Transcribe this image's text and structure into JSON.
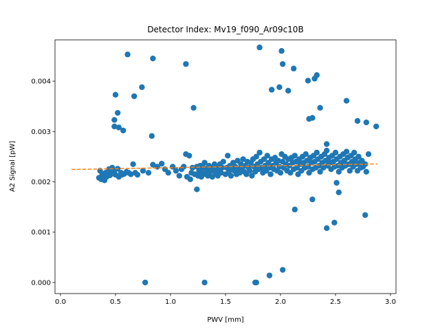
{
  "chart_data": {
    "type": "scatter",
    "title": "Detector Index: Mv19_f090_Ar09c10B",
    "xlabel": "PWV [mm]",
    "ylabel": "A2 Signal [pW]",
    "xlim": [
      -0.05,
      3.05
    ],
    "ylim": [
      -0.00022,
      0.00482
    ],
    "xticks": [
      0.0,
      0.5,
      1.0,
      1.5,
      2.0,
      2.5,
      3.0
    ],
    "xtick_labels": [
      "0.0",
      "0.5",
      "1.0",
      "1.5",
      "2.0",
      "2.5",
      "3.0"
    ],
    "yticks": [
      0.0,
      0.001,
      0.002,
      0.003,
      0.004
    ],
    "ytick_labels": [
      "0.000",
      "0.001",
      "0.002",
      "0.003",
      "0.004"
    ],
    "grid": false,
    "colors": {
      "points": "#1f77b4",
      "fit": "#ff7f0e"
    },
    "series": [
      {
        "name": "data",
        "kind": "points",
        "points": [
          [
            0.35,
            0.00208
          ],
          [
            0.36,
            0.00222
          ],
          [
            0.37,
            0.00205
          ],
          [
            0.38,
            0.00215
          ],
          [
            0.39,
            0.00212
          ],
          [
            0.4,
            0.00203
          ],
          [
            0.41,
            0.00218
          ],
          [
            0.42,
            0.0021
          ],
          [
            0.43,
            0.00215
          ],
          [
            0.44,
            0.00225
          ],
          [
            0.45,
            0.00213
          ],
          [
            0.46,
            0.00218
          ],
          [
            0.47,
            0.00228
          ],
          [
            0.48,
            0.00218
          ],
          [
            0.49,
            0.00222
          ],
          [
            0.5,
            0.00214
          ],
          [
            0.52,
            0.00226
          ],
          [
            0.53,
            0.0021
          ],
          [
            0.55,
            0.00218
          ],
          [
            0.56,
            0.00214
          ],
          [
            0.58,
            0.00216
          ],
          [
            0.6,
            0.0022
          ],
          [
            0.62,
            0.00218
          ],
          [
            0.64,
            0.00215
          ],
          [
            0.66,
            0.00235
          ],
          [
            0.68,
            0.00218
          ],
          [
            0.7,
            0.00214
          ],
          [
            0.75,
            0.00222
          ],
          [
            0.8,
            0.00218
          ],
          [
            0.84,
            0.00234
          ],
          [
            0.88,
            0.0023
          ],
          [
            0.92,
            0.00236
          ],
          [
            0.95,
            0.00225
          ],
          [
            0.98,
            0.00218
          ],
          [
            1.02,
            0.0023
          ],
          [
            1.05,
            0.00222
          ],
          [
            1.08,
            0.00212
          ],
          [
            1.1,
            0.00225
          ],
          [
            1.12,
            0.0023
          ],
          [
            1.14,
            0.00255
          ],
          [
            1.15,
            0.0021
          ],
          [
            1.17,
            0.00252
          ],
          [
            1.18,
            0.00205
          ],
          [
            1.19,
            0.00218
          ],
          [
            1.2,
            0.00228
          ],
          [
            1.22,
            0.00215
          ],
          [
            1.24,
            0.0023
          ],
          [
            1.25,
            0.00212
          ],
          [
            1.26,
            0.00222
          ],
          [
            1.27,
            0.00232
          ],
          [
            1.28,
            0.0021
          ],
          [
            1.29,
            0.00218
          ],
          [
            1.3,
            0.00228
          ],
          [
            1.31,
            0.00238
          ],
          [
            1.32,
            0.00215
          ],
          [
            1.33,
            0.00225
          ],
          [
            1.34,
            0.00212
          ],
          [
            1.35,
            0.00232
          ],
          [
            1.36,
            0.0022
          ],
          [
            1.37,
            0.00228
          ],
          [
            1.38,
            0.0021
          ],
          [
            1.39,
            0.00222
          ],
          [
            1.4,
            0.00235
          ],
          [
            1.41,
            0.00218
          ],
          [
            1.42,
            0.00228
          ],
          [
            1.43,
            0.00212
          ],
          [
            1.44,
            0.00225
          ],
          [
            1.45,
            0.00235
          ],
          [
            1.46,
            0.00218
          ],
          [
            1.47,
            0.00228
          ],
          [
            1.48,
            0.0024
          ],
          [
            1.5,
            0.00215
          ],
          [
            1.51,
            0.00228
          ],
          [
            1.52,
            0.00252
          ],
          [
            1.53,
            0.0022
          ],
          [
            1.54,
            0.00232
          ],
          [
            1.55,
            0.00212
          ],
          [
            1.56,
            0.00225
          ],
          [
            1.57,
            0.00238
          ],
          [
            1.58,
            0.00222
          ],
          [
            1.59,
            0.0023
          ],
          [
            1.6,
            0.00215
          ],
          [
            1.61,
            0.00242
          ],
          [
            1.62,
            0.00225
          ],
          [
            1.63,
            0.00218
          ],
          [
            1.64,
            0.00235
          ],
          [
            1.65,
            0.00228
          ],
          [
            1.66,
            0.00245
          ],
          [
            1.67,
            0.0022
          ],
          [
            1.68,
            0.00232
          ],
          [
            1.69,
            0.00215
          ],
          [
            1.7,
            0.0024
          ],
          [
            1.71,
            0.00228
          ],
          [
            1.72,
            0.00222
          ],
          [
            1.73,
            0.00238
          ],
          [
            1.74,
            0.00212
          ],
          [
            1.75,
            0.00245
          ],
          [
            1.76,
            0.0023
          ],
          [
            1.77,
            0.0022
          ],
          [
            1.78,
            0.0025
          ],
          [
            1.79,
            0.00235
          ],
          [
            1.8,
            0.00225
          ],
          [
            1.81,
            0.00258
          ],
          [
            1.82,
            0.0024
          ],
          [
            1.83,
            0.00228
          ],
          [
            1.84,
            0.00218
          ],
          [
            1.85,
            0.00245
          ],
          [
            1.86,
            0.00232
          ],
          [
            1.87,
            0.00222
          ],
          [
            1.88,
            0.00252
          ],
          [
            1.89,
            0.00238
          ],
          [
            1.9,
            0.00228
          ],
          [
            1.91,
            0.00215
          ],
          [
            1.92,
            0.00245
          ],
          [
            1.93,
            0.00232
          ],
          [
            1.94,
            0.00225
          ],
          [
            1.95,
            0.00248
          ],
          [
            1.96,
            0.00238
          ],
          [
            1.97,
            0.00222
          ],
          [
            1.98,
            0.00242
          ],
          [
            1.99,
            0.0023
          ],
          [
            2.0,
            0.00218
          ],
          [
            2.01,
            0.00255
          ],
          [
            2.02,
            0.0024
          ],
          [
            2.03,
            0.00228
          ],
          [
            2.04,
            0.0025
          ],
          [
            2.05,
            0.00235
          ],
          [
            2.06,
            0.00222
          ],
          [
            2.07,
            0.00245
          ],
          [
            2.08,
            0.00232
          ],
          [
            2.09,
            0.00218
          ],
          [
            2.1,
            0.00248
          ],
          [
            2.11,
            0.00238
          ],
          [
            2.12,
            0.00225
          ],
          [
            2.13,
            0.00252
          ],
          [
            2.14,
            0.0024
          ],
          [
            2.15,
            0.00228
          ],
          [
            2.16,
            0.00215
          ],
          [
            2.17,
            0.00245
          ],
          [
            2.18,
            0.00235
          ],
          [
            2.19,
            0.00222
          ],
          [
            2.2,
            0.0025
          ],
          [
            2.21,
            0.00238
          ],
          [
            2.22,
            0.00228
          ],
          [
            2.23,
            0.00255
          ],
          [
            2.24,
            0.00242
          ],
          [
            2.25,
            0.0023
          ],
          [
            2.26,
            0.00218
          ],
          [
            2.27,
            0.00248
          ],
          [
            2.28,
            0.00238
          ],
          [
            2.29,
            0.00225
          ],
          [
            2.3,
            0.00252
          ],
          [
            2.31,
            0.0024
          ],
          [
            2.32,
            0.00228
          ],
          [
            2.33,
            0.00258
          ],
          [
            2.34,
            0.00245
          ],
          [
            2.35,
            0.00232
          ],
          [
            2.36,
            0.0022
          ],
          [
            2.37,
            0.0025
          ],
          [
            2.38,
            0.00238
          ],
          [
            2.39,
            0.00228
          ],
          [
            2.4,
            0.00255
          ],
          [
            2.41,
            0.00242
          ],
          [
            2.42,
            0.00262
          ],
          [
            2.43,
            0.00232
          ],
          [
            2.44,
            0.00248
          ],
          [
            2.45,
            0.00238
          ],
          [
            2.46,
            0.00225
          ],
          [
            2.47,
            0.00252
          ],
          [
            2.48,
            0.0024
          ],
          [
            2.49,
            0.0023
          ],
          [
            2.5,
            0.00258
          ],
          [
            2.51,
            0.00245
          ],
          [
            2.52,
            0.00232
          ],
          [
            2.53,
            0.0022
          ],
          [
            2.54,
            0.0025
          ],
          [
            2.55,
            0.00238
          ],
          [
            2.56,
            0.00228
          ],
          [
            2.57,
            0.00255
          ],
          [
            2.58,
            0.00242
          ],
          [
            2.59,
            0.00232
          ],
          [
            2.6,
            0.0026
          ],
          [
            2.61,
            0.00248
          ],
          [
            2.62,
            0.00235
          ],
          [
            2.63,
            0.00222
          ],
          [
            2.64,
            0.00252
          ],
          [
            2.65,
            0.0024
          ],
          [
            2.66,
            0.0023
          ],
          [
            2.67,
            0.00258
          ],
          [
            2.68,
            0.00245
          ],
          [
            2.69,
            0.00235
          ],
          [
            2.7,
            0.00222
          ],
          [
            2.71,
            0.0025
          ],
          [
            2.72,
            0.00238
          ],
          [
            2.73,
            0.00228
          ],
          [
            2.74,
            0.00242
          ],
          [
            2.75,
            0.0023
          ],
          [
            2.77,
            0.00235
          ],
          [
            2.78,
            0.0022
          ],
          [
            2.8,
            0.00255
          ],
          [
            0.49,
            0.0031
          ],
          [
            0.49,
            0.00323
          ],
          [
            0.5,
            0.00373
          ],
          [
            0.52,
            0.00337
          ],
          [
            0.53,
            0.00308
          ],
          [
            0.57,
            0.00302
          ],
          [
            0.61,
            0.00453
          ],
          [
            0.67,
            0.0037
          ],
          [
            0.74,
            0.00388
          ],
          [
            0.77,
            0.0
          ],
          [
            0.83,
            0.00291
          ],
          [
            0.84,
            0.00445
          ],
          [
            1.14,
            0.00434
          ],
          [
            1.21,
            0.00347
          ],
          [
            1.24,
            0.00185
          ],
          [
            1.31,
            0.0
          ],
          [
            1.77,
            0.0
          ],
          [
            1.78,
            0.0
          ],
          [
            1.81,
            0.00467
          ],
          [
            1.9,
            0.00014
          ],
          [
            1.92,
            0.00383
          ],
          [
            1.99,
            0.00388
          ],
          [
            2.01,
            0.0046
          ],
          [
            2.02,
            0.00434
          ],
          [
            2.02,
            0.00025
          ],
          [
            2.07,
            0.00381
          ],
          [
            2.12,
            0.00425
          ],
          [
            2.13,
            0.00145
          ],
          [
            2.25,
            0.00401
          ],
          [
            2.26,
            0.00325
          ],
          [
            2.29,
            0.00327
          ],
          [
            2.29,
            0.00165
          ],
          [
            2.31,
            0.00405
          ],
          [
            2.33,
            0.00412
          ],
          [
            2.36,
            0.00347
          ],
          [
            2.42,
            0.00108
          ],
          [
            2.42,
            0.00275
          ],
          [
            2.49,
            0.00119
          ],
          [
            2.51,
            0.00198
          ],
          [
            2.53,
            0.00179
          ],
          [
            2.6,
            0.00361
          ],
          [
            2.7,
            0.00321
          ],
          [
            2.77,
            0.00134
          ],
          [
            2.78,
            0.00318
          ],
          [
            2.87,
            0.0031
          ]
        ]
      },
      {
        "name": "fit",
        "kind": "dashed-line",
        "points": [
          [
            0.1,
            0.002245
          ],
          [
            2.88,
            0.002355
          ]
        ]
      }
    ]
  }
}
